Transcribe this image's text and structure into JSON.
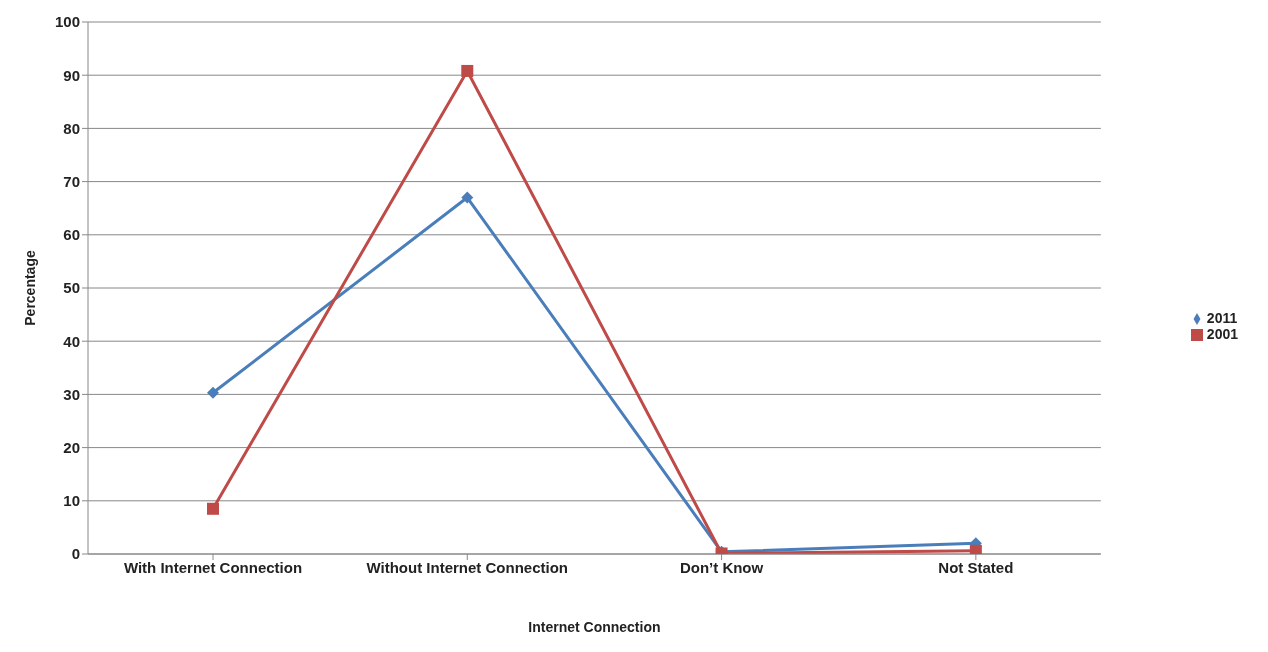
{
  "chart_data": {
    "type": "line",
    "xlabel": "Internet Connection",
    "ylabel": "Percentage",
    "categories": [
      "With Internet Connection",
      "Without Internet Connection",
      "Don’t Know",
      "Not Stated"
    ],
    "series": [
      {
        "name": "2011",
        "color": "#4a7ebb",
        "marker": "diamond",
        "values": [
          30.3,
          67,
          0.4,
          2
        ]
      },
      {
        "name": "2001",
        "color": "#be4b48",
        "marker": "square",
        "values": [
          8.5,
          90.8,
          0.1,
          0.6
        ]
      }
    ],
    "ylim": [
      0,
      100
    ],
    "yticks": [
      0,
      10,
      20,
      30,
      40,
      50,
      60,
      70,
      80,
      90,
      100
    ],
    "grid": "y",
    "legend": "right",
    "line_style": "solid"
  }
}
